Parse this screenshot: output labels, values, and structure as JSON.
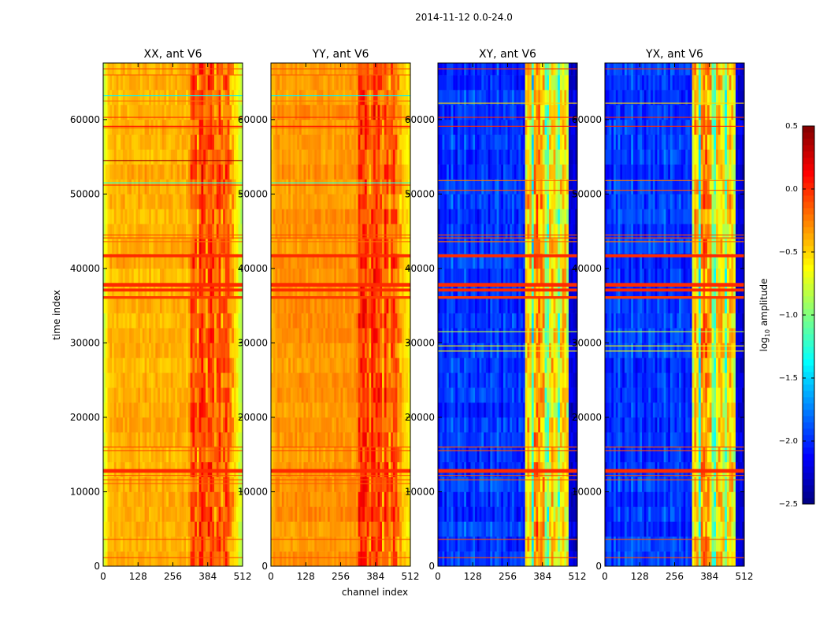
{
  "chart_data": {
    "type": "heatmap",
    "title": "2014-11-12 0.0-24.0",
    "xlabel": "channel index",
    "ylabel": "time index",
    "xlim": [
      0,
      512
    ],
    "ylim": [
      0,
      67600
    ],
    "xticks": [
      "0",
      "128",
      "256",
      "384",
      "512"
    ],
    "xtick_values": [
      0,
      128,
      256,
      384,
      512
    ],
    "yticks": [
      "0",
      "10000",
      "20000",
      "30000",
      "40000",
      "50000",
      "60000"
    ],
    "ytick_values": [
      0,
      10000,
      20000,
      30000,
      40000,
      50000,
      60000
    ],
    "colorbar": {
      "label_main": "log",
      "label_sub": "10",
      "label_rest": " amplitude",
      "range": [
        -2.5,
        0.5
      ],
      "colormap": "jet",
      "ticks": [
        "0.5",
        "0.0",
        "−0.5",
        "−1.0",
        "−1.5",
        "−2.0",
        "−2.5"
      ],
      "tick_values": [
        0.5,
        0.0,
        -0.5,
        -1.0,
        -1.5,
        -2.0,
        -2.5
      ]
    },
    "channel_bin_width": 8,
    "time_bin_width": 2000,
    "panels": [
      {
        "title": "XX, ant V6",
        "noise": 0.08,
        "band_noise": 0.22,
        "profile": [
          -0.75,
          -0.6,
          -0.45,
          -0.4,
          -0.42,
          -0.38,
          -0.4,
          -0.43,
          -0.4,
          -0.38,
          -0.41,
          -0.4,
          -0.36,
          -0.4,
          -0.42,
          -0.4,
          -0.38,
          -0.4,
          -0.41,
          -0.37,
          -0.4,
          -0.39,
          -0.42,
          -0.4,
          -0.38,
          -0.41,
          -0.4,
          -0.37,
          -0.4,
          -0.42,
          -0.4,
          -0.38,
          -0.4,
          -0.41,
          -0.39,
          -0.4,
          -0.38,
          -0.4,
          -0.42,
          -0.35,
          -0.15,
          -0.1,
          -0.12,
          -0.3,
          -0.05,
          0.0,
          -0.08,
          -0.25,
          -0.05,
          -0.02,
          -0.1,
          -0.3,
          -0.12,
          -0.1,
          -0.28,
          -0.15,
          -0.12,
          -0.18,
          -0.3,
          -0.4,
          -0.5,
          -0.6,
          -0.75,
          -0.8
        ],
        "rows": [
          {
            "t": 66800,
            "v": -0.1
          },
          {
            "t": 66000,
            "v": -0.15
          },
          {
            "t": 63200,
            "v": -1.4
          },
          {
            "t": 62500,
            "v": -0.2
          },
          {
            "t": 60300,
            "v": 0.0
          },
          {
            "t": 59100,
            "v": 0.1
          },
          {
            "t": 58900,
            "v": -0.1
          },
          {
            "t": 54500,
            "v": 0.4
          },
          {
            "t": 51500,
            "v": -1.3
          },
          {
            "t": 51200,
            "v": 0.0
          },
          {
            "t": 44500,
            "v": -0.1
          },
          {
            "t": 44100,
            "v": -0.1
          },
          {
            "t": 43600,
            "v": -0.2
          },
          {
            "t": 41700,
            "v": 0.0,
            "w": 400
          },
          {
            "t": 37800,
            "v": 0.0,
            "w": 500
          },
          {
            "t": 37100,
            "v": 0.0,
            "w": 400
          },
          {
            "t": 36100,
            "v": -0.05,
            "w": 350
          },
          {
            "t": 16000,
            "v": -0.1
          },
          {
            "t": 15500,
            "v": -0.1
          },
          {
            "t": 12800,
            "v": 0.0,
            "w": 500
          },
          {
            "t": 12200,
            "v": -0.1
          },
          {
            "t": 11600,
            "v": -0.1
          },
          {
            "t": 11100,
            "v": -0.15
          },
          {
            "t": 3600,
            "v": -0.1
          },
          {
            "t": 1160,
            "v": -0.1
          }
        ]
      },
      {
        "title": "YY, ant V6",
        "noise": 0.07,
        "band_noise": 0.22,
        "profile": [
          -0.45,
          -0.35,
          -0.32,
          -0.3,
          -0.33,
          -0.3,
          -0.32,
          -0.35,
          -0.3,
          -0.33,
          -0.32,
          -0.3,
          -0.34,
          -0.3,
          -0.32,
          -0.31,
          -0.33,
          -0.3,
          -0.32,
          -0.33,
          -0.3,
          -0.32,
          -0.31,
          -0.3,
          -0.33,
          -0.32,
          -0.3,
          -0.31,
          -0.33,
          -0.3,
          -0.32,
          -0.31,
          -0.3,
          -0.33,
          -0.32,
          -0.31,
          -0.3,
          -0.33,
          -0.32,
          -0.3,
          -0.05,
          0.0,
          -0.02,
          -0.05,
          -0.1,
          -0.25,
          -0.05,
          0.0,
          -0.08,
          -0.03,
          -0.1,
          -0.3,
          -0.05,
          -0.08,
          -0.3,
          -0.12,
          -0.1,
          -0.15,
          -0.3,
          -0.4,
          -0.45,
          -0.5,
          -0.55,
          -0.6
        ],
        "rows": [
          {
            "t": 66800,
            "v": -0.1
          },
          {
            "t": 66000,
            "v": -0.15
          },
          {
            "t": 63200,
            "v": -1.4
          },
          {
            "t": 62500,
            "v": -0.2
          },
          {
            "t": 60300,
            "v": 0.0
          },
          {
            "t": 59100,
            "v": 0.1
          },
          {
            "t": 58900,
            "v": -0.1
          },
          {
            "t": 51500,
            "v": -1.3
          },
          {
            "t": 51200,
            "v": 0.0
          },
          {
            "t": 44500,
            "v": -0.1
          },
          {
            "t": 44100,
            "v": -0.1
          },
          {
            "t": 43600,
            "v": -0.2
          },
          {
            "t": 41700,
            "v": 0.0,
            "w": 400
          },
          {
            "t": 37800,
            "v": 0.0,
            "w": 500
          },
          {
            "t": 37100,
            "v": 0.0,
            "w": 400
          },
          {
            "t": 36100,
            "v": -0.05,
            "w": 350
          },
          {
            "t": 16000,
            "v": -0.1
          },
          {
            "t": 15500,
            "v": -0.1
          },
          {
            "t": 12800,
            "v": 0.0,
            "w": 500
          },
          {
            "t": 12200,
            "v": -0.1
          },
          {
            "t": 11600,
            "v": -0.1
          },
          {
            "t": 11100,
            "v": -0.15
          },
          {
            "t": 3600,
            "v": -0.1
          },
          {
            "t": 1160,
            "v": -0.1
          }
        ]
      },
      {
        "title": "XY, ant V6",
        "noise": 0.12,
        "band_noise": 0.3,
        "profile": [
          -2.1,
          -2.0,
          -1.95,
          -2.05,
          -1.9,
          -2.0,
          -1.85,
          -2.0,
          -2.05,
          -1.9,
          -1.95,
          -2.0,
          -1.85,
          -2.0,
          -2.05,
          -1.95,
          -1.9,
          -2.0,
          -2.05,
          -1.95,
          -1.9,
          -2.0,
          -1.95,
          -2.05,
          -1.9,
          -2.0,
          -1.95,
          -1.85,
          -2.0,
          -2.05,
          -1.9,
          -1.95,
          -2.0,
          -1.95,
          -1.9,
          -2.0,
          -2.05,
          -1.95,
          -2.0,
          -2.05,
          -0.6,
          -0.45,
          -0.55,
          -1.3,
          -0.35,
          -0.25,
          -0.3,
          -0.4,
          -0.45,
          -1.0,
          -1.1,
          -0.6,
          -0.5,
          -0.55,
          -0.65,
          -1.1,
          -0.6,
          -0.5,
          -0.55,
          -0.7,
          -2.2,
          -2.25,
          -2.2,
          -2.3
        ],
        "rows": [
          {
            "t": 66800,
            "v": 0.0
          },
          {
            "t": 62200,
            "v": -0.5
          },
          {
            "t": 60300,
            "v": 0.0
          },
          {
            "t": 59100,
            "v": 0.0
          },
          {
            "t": 51800,
            "v": -0.2
          },
          {
            "t": 50500,
            "v": -0.1
          },
          {
            "t": 44500,
            "v": -0.1
          },
          {
            "t": 44100,
            "v": -0.1
          },
          {
            "t": 43600,
            "v": -0.2
          },
          {
            "t": 41700,
            "v": 0.0,
            "w": 400
          },
          {
            "t": 37800,
            "v": 0.0,
            "w": 500
          },
          {
            "t": 37100,
            "v": 0.0,
            "w": 400
          },
          {
            "t": 36100,
            "v": -0.05,
            "w": 350
          },
          {
            "t": 31500,
            "v": -0.8
          },
          {
            "t": 29600,
            "v": -0.6
          },
          {
            "t": 28900,
            "v": -0.6
          },
          {
            "t": 16000,
            "v": -0.1
          },
          {
            "t": 15500,
            "v": -0.1
          },
          {
            "t": 12800,
            "v": 0.0,
            "w": 500
          },
          {
            "t": 12200,
            "v": -0.1
          },
          {
            "t": 11600,
            "v": -0.1
          },
          {
            "t": 3600,
            "v": -0.1
          },
          {
            "t": 1160,
            "v": -0.1
          }
        ]
      },
      {
        "title": "YX, ant V6",
        "noise": 0.12,
        "band_noise": 0.3,
        "profile": [
          -2.1,
          -2.0,
          -1.95,
          -2.05,
          -1.9,
          -2.0,
          -1.85,
          -2.0,
          -2.05,
          -1.9,
          -1.95,
          -2.0,
          -1.85,
          -2.0,
          -2.05,
          -1.95,
          -1.9,
          -2.0,
          -2.05,
          -1.95,
          -1.9,
          -2.0,
          -1.95,
          -2.05,
          -1.9,
          -2.0,
          -1.95,
          -1.85,
          -2.0,
          -2.05,
          -1.9,
          -1.95,
          -2.0,
          -1.95,
          -1.9,
          -2.0,
          -2.05,
          -1.95,
          -2.0,
          -2.05,
          -0.6,
          -0.45,
          -0.55,
          -1.3,
          -0.35,
          -0.25,
          -0.3,
          -0.4,
          -0.45,
          -1.0,
          -1.1,
          -0.6,
          -0.5,
          -0.55,
          -0.65,
          -1.1,
          -0.6,
          -0.5,
          -0.55,
          -0.7,
          -2.2,
          -2.25,
          -2.2,
          -2.3
        ],
        "rows": [
          {
            "t": 66800,
            "v": 0.0
          },
          {
            "t": 62200,
            "v": -0.5
          },
          {
            "t": 60300,
            "v": 0.0
          },
          {
            "t": 59100,
            "v": 0.0
          },
          {
            "t": 51800,
            "v": -0.2
          },
          {
            "t": 50500,
            "v": -0.1
          },
          {
            "t": 44500,
            "v": -0.1
          },
          {
            "t": 44100,
            "v": -0.1
          },
          {
            "t": 43600,
            "v": -0.2
          },
          {
            "t": 41700,
            "v": 0.0,
            "w": 400
          },
          {
            "t": 37800,
            "v": 0.0,
            "w": 500
          },
          {
            "t": 37100,
            "v": 0.0,
            "w": 400
          },
          {
            "t": 36100,
            "v": -0.05,
            "w": 350
          },
          {
            "t": 31500,
            "v": -0.8
          },
          {
            "t": 29600,
            "v": -0.6
          },
          {
            "t": 28900,
            "v": -0.6
          },
          {
            "t": 16000,
            "v": -0.1
          },
          {
            "t": 15500,
            "v": -0.1
          },
          {
            "t": 12800,
            "v": 0.0,
            "w": 500
          },
          {
            "t": 12200,
            "v": -0.1
          },
          {
            "t": 11600,
            "v": -0.1
          },
          {
            "t": 3600,
            "v": -0.1
          },
          {
            "t": 1160,
            "v": -0.1
          }
        ]
      }
    ]
  }
}
